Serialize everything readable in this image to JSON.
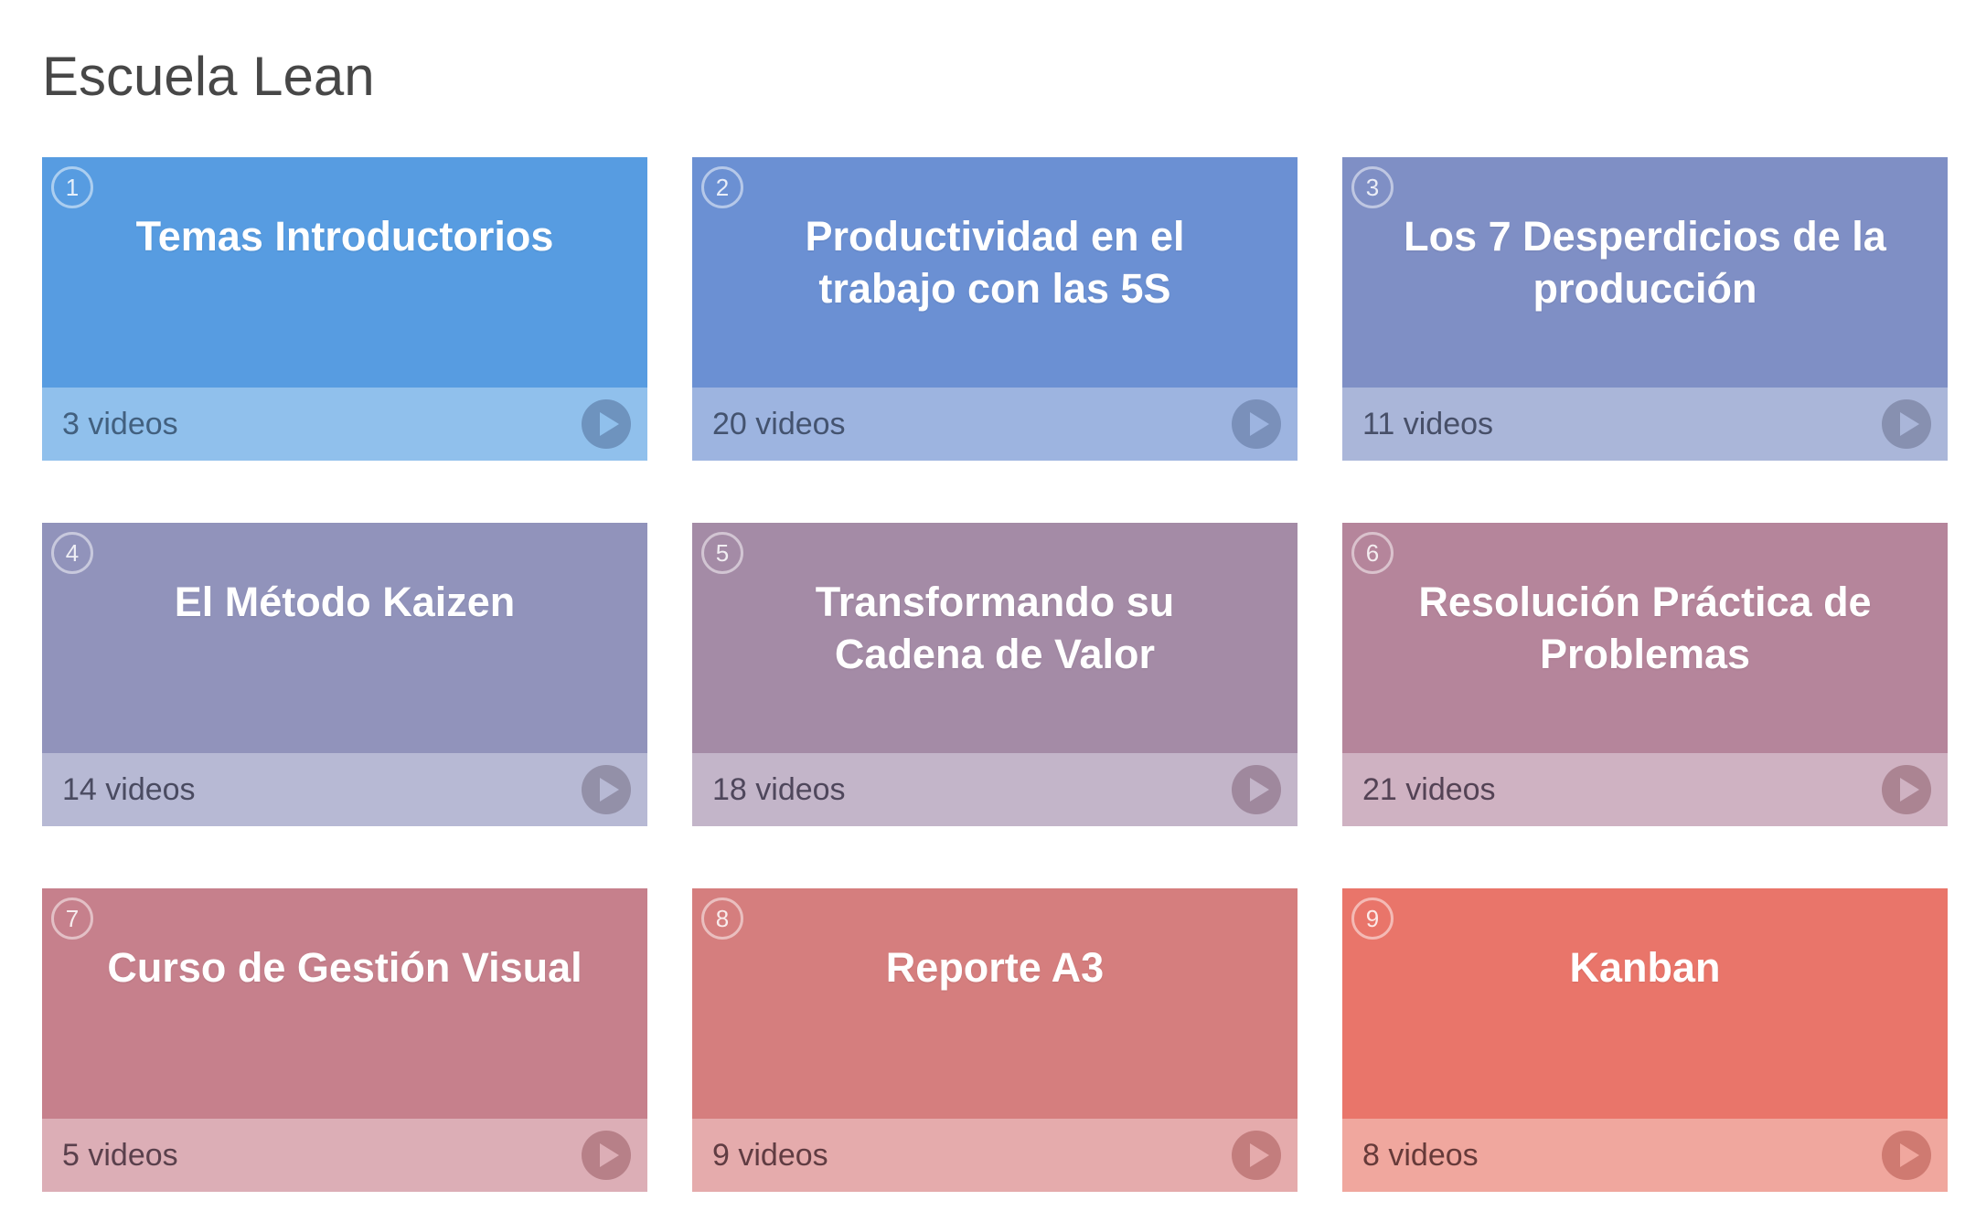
{
  "page": {
    "title": "Escuela Lean",
    "title_color": "#474747",
    "background": "#ffffff"
  },
  "icons": {
    "play": "play-triangle-right",
    "badge_shape": "circle-outline"
  },
  "cards": [
    {
      "number": "1",
      "title": "Temas Introductorios",
      "videos_label": "3 videos",
      "colors": {
        "body": "#579ce1",
        "footer": "#90c0ec",
        "play": "#6e93be",
        "count_text": "#42607f"
      }
    },
    {
      "number": "2",
      "title": "Productividad en el trabajo con las 5S",
      "videos_label": "20 videos",
      "colors": {
        "body": "#6b90d3",
        "footer": "#9db4e0",
        "play": "#7a90ba",
        "count_text": "#44536f"
      }
    },
    {
      "number": "3",
      "title": "Los 7 Desperdicios de la producción",
      "videos_label": "11 videos",
      "colors": {
        "body": "#7f8fc5",
        "footer": "#aab6d9",
        "play": "#8790b0",
        "count_text": "#474f68"
      }
    },
    {
      "number": "4",
      "title": "El Método Kaizen",
      "videos_label": "14 videos",
      "colors": {
        "body": "#9193bb",
        "footer": "#b7b9d4",
        "play": "#9390a8",
        "count_text": "#4a4b61"
      }
    },
    {
      "number": "5",
      "title": "Transformando su Cadena de Valor",
      "videos_label": "18 videos",
      "colors": {
        "body": "#a48ba6",
        "footer": "#c3b5c9",
        "play": "#9f889d",
        "count_text": "#4f475c"
      }
    },
    {
      "number": "6",
      "title": "Resolución Práctica de Problemas",
      "videos_label": "21 videos",
      "colors": {
        "body": "#b5859b",
        "footer": "#cfb2c2",
        "play": "#ab8492",
        "count_text": "#544355"
      }
    },
    {
      "number": "7",
      "title": "Curso de Gestión Visual",
      "videos_label": "5 videos",
      "colors": {
        "body": "#c6808c",
        "footer": "#dcaeb6",
        "play": "#b78088",
        "count_text": "#5a404c"
      }
    },
    {
      "number": "8",
      "title": "Reporte A3",
      "videos_label": "9 videos",
      "colors": {
        "body": "#d57e7e",
        "footer": "#e5abac",
        "play": "#c37d7d",
        "count_text": "#603c42"
      }
    },
    {
      "number": "9",
      "title": "Kanban",
      "videos_label": "8 videos",
      "colors": {
        "body": "#e9756a",
        "footer": "#f0a79e",
        "play": "#cf7a71",
        "count_text": "#663a39"
      }
    }
  ]
}
